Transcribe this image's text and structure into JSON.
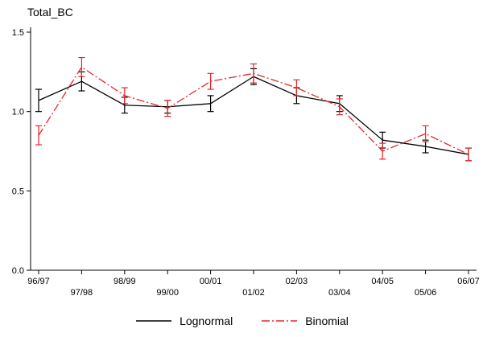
{
  "chart_data": {
    "type": "line",
    "title": "Total_BC",
    "xlabel": "",
    "ylabel": "",
    "x": [
      "96/97",
      "97/98",
      "98/99",
      "99/00",
      "00/01",
      "01/02",
      "02/03",
      "03/04",
      "04/05",
      "05/06",
      "06/07"
    ],
    "ylim": [
      0,
      1.5
    ],
    "yticks": [
      0.0,
      0.5,
      1.0,
      1.5
    ],
    "ytick_labels": [
      "0.0",
      "0.5",
      "1.0",
      "1.5"
    ],
    "grid": false,
    "legend_position": "bottom",
    "error_bars": true,
    "series": [
      {
        "name": "Lognormal",
        "color": "#000000",
        "style": "solid",
        "values": [
          1.07,
          1.19,
          1.04,
          1.03,
          1.05,
          1.22,
          1.1,
          1.05,
          0.82,
          0.78,
          0.73
        ],
        "errors": [
          0.07,
          0.06,
          0.05,
          0.04,
          0.05,
          0.05,
          0.05,
          0.05,
          0.05,
          0.04,
          0.04
        ]
      },
      {
        "name": "Binomial",
        "color": "#e8252a",
        "style": "dashdot",
        "values": [
          0.85,
          1.28,
          1.1,
          1.02,
          1.19,
          1.24,
          1.15,
          1.03,
          0.75,
          0.86,
          0.73
        ],
        "errors": [
          0.06,
          0.06,
          0.05,
          0.05,
          0.05,
          0.06,
          0.05,
          0.05,
          0.05,
          0.05,
          0.04
        ]
      }
    ]
  }
}
